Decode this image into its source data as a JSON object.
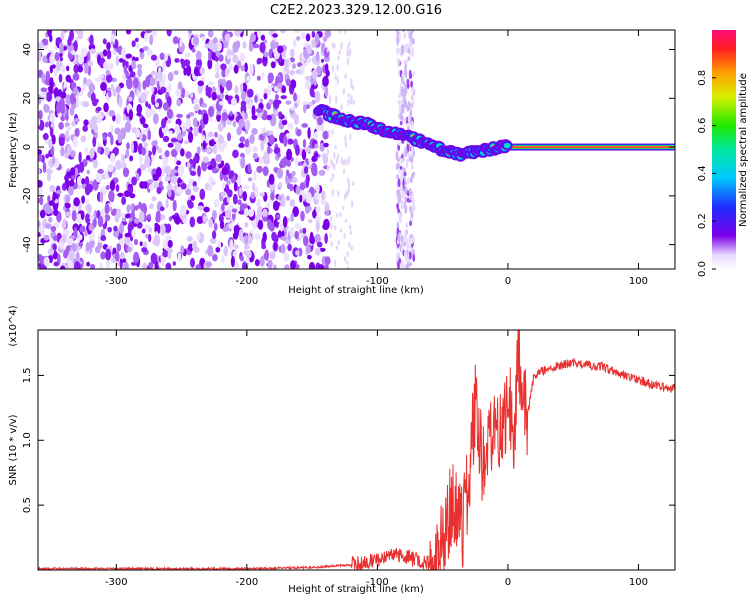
{
  "title": "C2E2.2023.329.12.00.G16",
  "chart_data": [
    {
      "type": "heatmap",
      "xlabel": "Height of straight line (km)",
      "ylabel": "Frequency (Hz)",
      "xlim": [
        -360,
        128
      ],
      "ylim": [
        -50,
        48
      ],
      "xticks": [
        -300,
        -200,
        -100,
        0,
        100
      ],
      "xtick_labels": [
        "-300",
        "-200",
        "-100",
        "0",
        "100"
      ],
      "yticks": [
        -40,
        -20,
        0,
        20,
        40
      ],
      "ytick_labels": [
        "-40",
        "-20",
        "0",
        "20",
        "40"
      ],
      "colorbar": {
        "label": "Normalized spectral amplitude",
        "range": [
          0.0,
          1.0
        ],
        "ticks": [
          0.0,
          0.2,
          0.4,
          0.6,
          0.8
        ],
        "tick_labels": [
          "0.0",
          "0.2",
          "0.4",
          "0.6",
          "0.8"
        ]
      },
      "noise_region": {
        "x": [
          -360,
          -138
        ],
        "y": [
          -50,
          48
        ]
      },
      "noise_band": {
        "x": [
          -85,
          -72
        ],
        "y": [
          -50,
          48
        ]
      },
      "signal_ridge": {
        "x": [
          -145,
          -135,
          -125,
          -115,
          -105,
          -95,
          -85,
          -75,
          -65,
          -55,
          -45,
          -35,
          -25,
          -15,
          -5,
          0,
          20,
          60,
          100,
          128
        ],
        "y": [
          15,
          13,
          11,
          10,
          9,
          7,
          5,
          4,
          2,
          0,
          -2,
          -3,
          -2,
          -1,
          0,
          0,
          0,
          0,
          0,
          0
        ]
      },
      "steady_line": {
        "x": [
          0,
          128
        ],
        "y": 0
      }
    },
    {
      "type": "line",
      "xlabel": "Height of straight line (km)",
      "ylabel": "SNR (10 * v/v)",
      "y_multiplier": "(x10^4)",
      "xlim": [
        -360,
        128
      ],
      "ylim": [
        0,
        1.85
      ],
      "xticks": [
        -300,
        -200,
        -100,
        0,
        100
      ],
      "xtick_labels": [
        "-300",
        "-200",
        "-100",
        "0",
        "100"
      ],
      "yticks": [
        0.5,
        1.0,
        1.5
      ],
      "ytick_labels": [
        "0.5",
        "1.0",
        "1.5"
      ],
      "series": [
        {
          "color": "#e8312f",
          "x": [
            -360,
            -300,
            -250,
            -200,
            -150,
            -120,
            -110,
            -100,
            -90,
            -80,
            -75,
            -60,
            -50,
            -45,
            -40,
            -35,
            -30,
            -25,
            -20,
            -15,
            -10,
            -5,
            0,
            5,
            8,
            10,
            15,
            20,
            30,
            40,
            50,
            60,
            70,
            80,
            90,
            100,
            110,
            120,
            128
          ],
          "y": [
            0.01,
            0.01,
            0.01,
            0.01,
            0.02,
            0.04,
            0.06,
            0.08,
            0.1,
            0.12,
            0.09,
            0.05,
            0.2,
            0.45,
            0.5,
            0.3,
            0.7,
            1.25,
            0.85,
            0.95,
            1.25,
            1.05,
            1.3,
            1.1,
            1.75,
            1.25,
            1.2,
            1.5,
            1.55,
            1.58,
            1.6,
            1.58,
            1.57,
            1.54,
            1.5,
            1.47,
            1.43,
            1.4,
            1.4
          ]
        }
      ]
    }
  ],
  "colors": {
    "noise": "#7b00e8",
    "signal_core": "#ff1f2e",
    "line": "#e8312f"
  }
}
